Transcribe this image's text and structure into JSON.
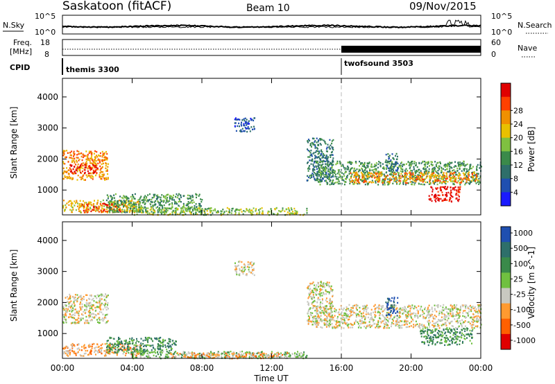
{
  "header": {
    "station": "Saskatoon (fitACF)",
    "beam": "Beam 10",
    "date": "09/Nov/2015"
  },
  "params": {
    "nsky_label": "N.Sky",
    "nsearch_label": "N.Search",
    "freq_label_1": "Freq.",
    "freq_label_2": "[MHz]",
    "nave_label": "Nave",
    "cpid_label": "CPID",
    "nsky_ticks": [
      "10^5",
      "10^0"
    ],
    "nsearch_ticks": [
      "10^5",
      "10^0"
    ],
    "freq_ticks": [
      "18",
      "8"
    ],
    "nave_ticks": [
      "60",
      "0"
    ],
    "cpid_segments": [
      {
        "name": "themis 3300",
        "start_hour": 0
      },
      {
        "name": "twofsound 3503",
        "start_hour": 16
      }
    ]
  },
  "colors": {
    "power_scale": [
      "#1a1aff",
      "#1f4fb0",
      "#2e6f6a",
      "#3a8a4a",
      "#7fc040",
      "#e8c000",
      "#f09000",
      "#ff4000",
      "#e00000"
    ],
    "velocity_scale": [
      "#1f4fb0",
      "#2e6f6a",
      "#3a8a4a",
      "#70c040",
      "#c8c8c0",
      "#ff9a30",
      "#ff6000",
      "#e00000"
    ]
  },
  "chart_data": [
    {
      "type": "heatmap",
      "title": "",
      "xlabel": "Time UT",
      "ylabel": "Slant Range [km]",
      "xlim": [
        0,
        24
      ],
      "ylim": [
        200,
        4600
      ],
      "x_ticks": [
        "00:00",
        "04:00",
        "08:00",
        "12:00",
        "16:00",
        "20:00",
        "00:00"
      ],
      "y_ticks": [
        "1000",
        "2000",
        "3000",
        "4000"
      ],
      "colorbar_label": "Power [dB]",
      "colorbar_ticks": [
        "4",
        "8",
        "12",
        "16",
        "20",
        "24",
        "28"
      ],
      "scatter_regions": [
        {
          "t0": 0.0,
          "t1": 2.6,
          "r0": 1350,
          "r1": 2300,
          "level": 6
        },
        {
          "t0": 0.4,
          "t1": 2.0,
          "r0": 1550,
          "r1": 1850,
          "level": 8
        },
        {
          "t0": 0.0,
          "t1": 4.5,
          "r0": 300,
          "r1": 700,
          "level": 5
        },
        {
          "t0": 1.0,
          "t1": 3.5,
          "r0": 300,
          "r1": 600,
          "level": 7
        },
        {
          "t0": 2.5,
          "t1": 8.0,
          "r0": 300,
          "r1": 900,
          "level": 3
        },
        {
          "t0": 4.0,
          "t1": 14.0,
          "r0": 220,
          "r1": 450,
          "level": 4
        },
        {
          "t0": 9.8,
          "t1": 11.0,
          "r0": 2900,
          "r1": 3350,
          "level": 1
        },
        {
          "t0": 14.0,
          "t1": 15.5,
          "r0": 1300,
          "r1": 2700,
          "level": 2
        },
        {
          "t0": 14.5,
          "t1": 24.0,
          "r0": 1200,
          "r1": 1950,
          "level": 3
        },
        {
          "t0": 16.5,
          "t1": 23.8,
          "r0": 1250,
          "r1": 1600,
          "level": 6
        },
        {
          "t0": 21.0,
          "t1": 22.8,
          "r0": 650,
          "r1": 1150,
          "level": 8
        },
        {
          "t0": 18.5,
          "t1": 19.2,
          "r0": 1600,
          "r1": 2200,
          "level": 2
        }
      ]
    },
    {
      "type": "heatmap",
      "title": "",
      "xlabel": "Time UT",
      "ylabel": "Slant Range [km]",
      "xlim": [
        0,
        24
      ],
      "ylim": [
        200,
        4600
      ],
      "x_ticks": [
        "00:00",
        "04:00",
        "08:00",
        "12:00",
        "16:00",
        "20:00",
        "00:00"
      ],
      "y_ticks": [
        "1000",
        "2000",
        "3000",
        "4000"
      ],
      "colorbar_label": "Velocity [m s^-1]",
      "colorbar_ticks": [
        "1000",
        "500",
        "100",
        "25",
        "-25",
        "-100",
        "-500",
        "-1000"
      ],
      "scatter_regions": [
        {
          "t0": 0.0,
          "t1": 2.6,
          "r0": 1350,
          "r1": 2300,
          "level": 4
        },
        {
          "t0": 0.0,
          "t1": 4.5,
          "r0": 300,
          "r1": 700,
          "level": 5
        },
        {
          "t0": 2.5,
          "t1": 6.5,
          "r0": 400,
          "r1": 900,
          "level": 2
        },
        {
          "t0": 4.0,
          "t1": 14.0,
          "r0": 220,
          "r1": 450,
          "level": 3
        },
        {
          "t0": 6.0,
          "t1": 13.0,
          "r0": 220,
          "r1": 400,
          "level": 5
        },
        {
          "t0": 9.8,
          "t1": 11.0,
          "r0": 2900,
          "r1": 3350,
          "level": 4
        },
        {
          "t0": 14.0,
          "t1": 15.5,
          "r0": 1300,
          "r1": 2700,
          "level": 4
        },
        {
          "t0": 14.5,
          "t1": 24.0,
          "r0": 1200,
          "r1": 1950,
          "level": 4
        },
        {
          "t0": 20.5,
          "t1": 23.5,
          "r0": 650,
          "r1": 1200,
          "level": 2
        },
        {
          "t0": 18.5,
          "t1": 19.2,
          "r0": 1600,
          "r1": 2200,
          "level": 0
        }
      ]
    }
  ]
}
